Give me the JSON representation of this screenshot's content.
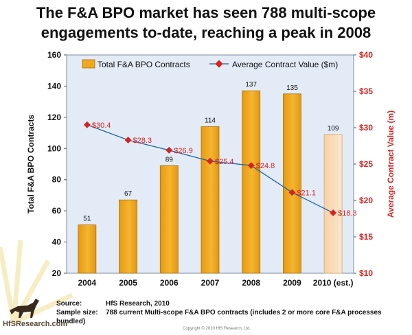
{
  "title": "The F&A BPO market has seen 788 multi-scope engagements to-date, reaching a peak in 2008",
  "chart_data": {
    "type": "bar",
    "categories": [
      "2004",
      "2005",
      "2006",
      "2007",
      "2008",
      "2009",
      "2010 (est.)"
    ],
    "series": [
      {
        "name": "Total F&A BPO Contracts",
        "kind": "bar",
        "axis": "left",
        "color": "#f0a91e",
        "values": [
          51,
          67,
          89,
          114,
          137,
          135,
          109
        ],
        "labels": [
          "51",
          "67",
          "89",
          "114",
          "137",
          "135",
          "109"
        ]
      },
      {
        "name": "Average Contract Value ($m)",
        "kind": "line",
        "axis": "right",
        "color": "#1f5fa8",
        "marker_color": "#d6231f",
        "values": [
          30.4,
          28.3,
          26.9,
          25.4,
          24.8,
          21.1,
          18.3
        ],
        "labels": [
          "$30.4",
          "$28.3",
          "$26.9",
          "$25.4",
          "$24.8",
          "$21.1",
          "$18.3"
        ]
      }
    ],
    "ylabel": "Total F&A BPO Contracts",
    "y2label": "Average Contract Value (m)",
    "ylim": [
      20,
      160
    ],
    "yticks": [
      "20",
      "40",
      "60",
      "80",
      "100",
      "120",
      "140",
      "160"
    ],
    "y2lim": [
      10,
      40
    ],
    "y2ticks": [
      "$10",
      "$15",
      "$20",
      "$25",
      "$30",
      "$35",
      "$40"
    ],
    "legend": "top",
    "grid": false,
    "estimate_category": "2010 (est.)"
  },
  "footnote": {
    "source_label": "Source:",
    "source_text": "HfS Research, 2010",
    "sample_label": "Sample size:",
    "sample_text": "788 current Multi-scope F&A BPO contracts (includes 2 or more core F&A processes bundled)"
  },
  "branding": {
    "logo_text": "HfSResearch.com",
    "copyright": "Copyright © 2010 HfS Research, Ltd."
  }
}
